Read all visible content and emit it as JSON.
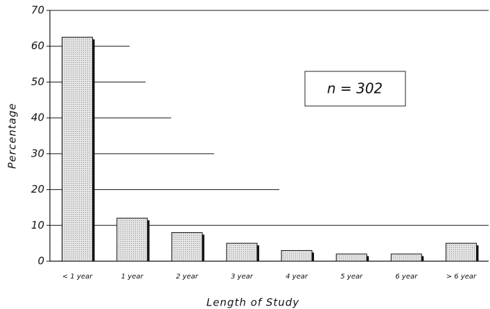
{
  "chart_data": {
    "type": "bar",
    "categories": [
      "< 1 year",
      "1 year",
      "2 year",
      "3 year",
      "4 year",
      "5 year",
      "6 year",
      "> 6 year"
    ],
    "values": [
      62.5,
      12,
      8,
      5,
      3,
      2,
      2,
      5
    ],
    "color": "#d0d0d0",
    "ylim": [
      0,
      70
    ],
    "yticks": [
      0,
      10,
      20,
      30,
      40,
      50,
      60,
      70
    ],
    "x_label": "Length of Study",
    "y_label": "Percentage",
    "annotation": "n = 302",
    "grid": true
  }
}
